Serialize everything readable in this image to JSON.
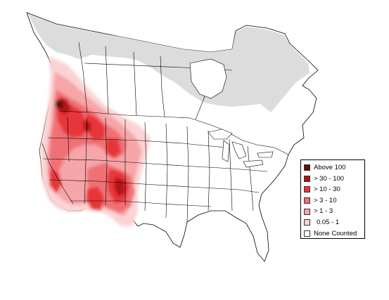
{
  "map": {
    "legend": {
      "items": [
        {
          "label": "Above 100",
          "color": "#5a0f10"
        },
        {
          "label": "> 30 - 100",
          "color": "#b31217"
        },
        {
          "label": "> 10 - 30",
          "color": "#e8353b"
        },
        {
          "label": "> 3 - 10",
          "color": "#f07175"
        },
        {
          "label": "> 1 - 3",
          "color": "#f6a5a8"
        },
        {
          "label": "0.05 - 1",
          "color": "#fbd3d4"
        },
        {
          "label": "None Counted",
          "color": "#ffffff"
        }
      ]
    },
    "colors": {
      "land": "#ffffff",
      "not_surveyed": "#dcdcdc",
      "borders": "#000000"
    }
  }
}
